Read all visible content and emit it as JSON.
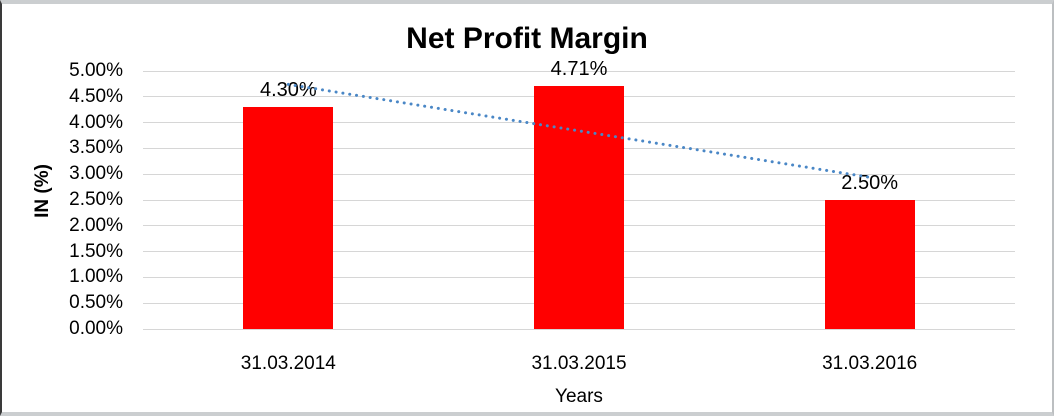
{
  "chart_data": {
    "type": "bar",
    "title": "Net Profit Margin",
    "xlabel": "Years",
    "ylabel": "IN (%)",
    "categories": [
      "31.03.2014",
      "31.03.2015",
      "31.03.2016"
    ],
    "values": [
      4.3,
      4.71,
      2.5
    ],
    "value_labels": [
      "4.30%",
      "4.71%",
      "2.50%"
    ],
    "ylim": [
      0,
      5
    ],
    "ytick_step": 0.5,
    "ytick_labels": [
      "5.00%",
      "4.50%",
      "4.00%",
      "3.50%",
      "3.00%",
      "2.50%",
      "2.00%",
      "1.50%",
      "1.00%",
      "0.50%",
      "0.00%"
    ],
    "grid": "horizontal",
    "legend": "none",
    "bar_color": "#FF0000",
    "gridline_color": "#D6D6D6",
    "text_color": "#000000",
    "trendline": {
      "type": "linear",
      "style": "dotted",
      "color": "#4A87C6",
      "y_start": 4.74,
      "y_end": 2.94
    }
  }
}
